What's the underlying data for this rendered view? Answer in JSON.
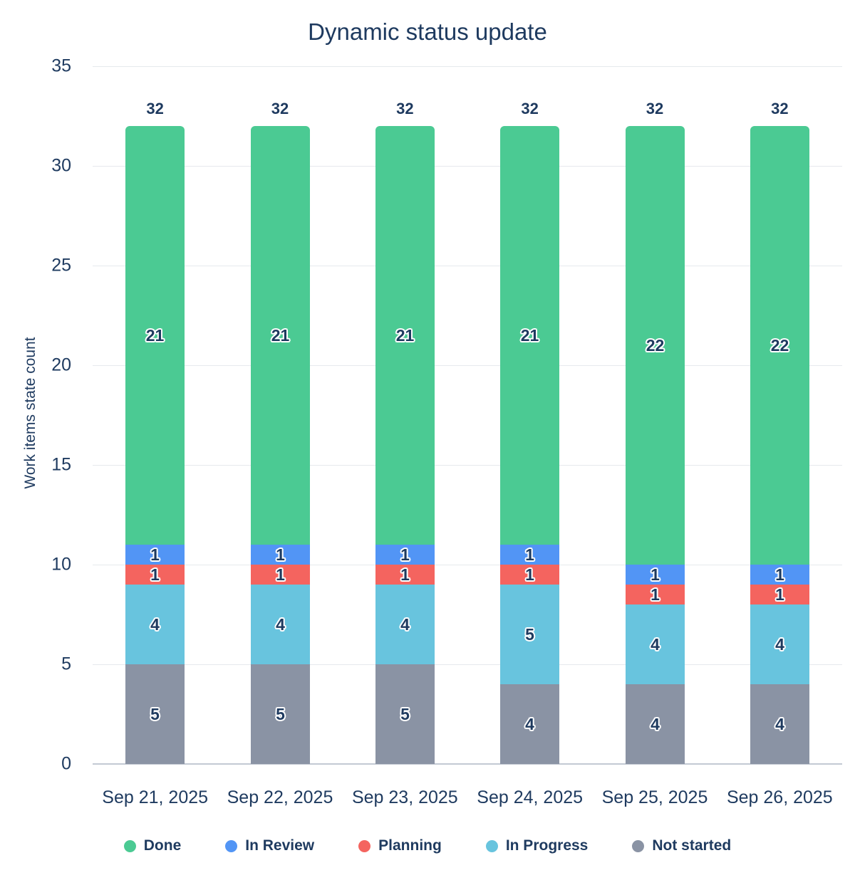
{
  "title": "Dynamic status update",
  "y_axis": {
    "label": "Work items state count",
    "ticks": [
      0,
      5,
      10,
      15,
      20,
      25,
      30,
      35
    ]
  },
  "colors": {
    "text_navy": "#1e3a5f",
    "gridline": "#e6e9ed",
    "zero_line": "#c3c9d3",
    "done": "#4bca93",
    "in_review": "#5295f5",
    "planning": "#f4645f",
    "in_progress": "#68c4de",
    "not_started": "#8a93a4"
  },
  "chart_data": {
    "type": "bar",
    "stacked": true,
    "title": "Dynamic status update",
    "xlabel": "",
    "ylabel": "Work items state count",
    "ylim": [
      0,
      35
    ],
    "grid": true,
    "legend_position": "bottom",
    "categories": [
      "Sep 21, 2025",
      "Sep 22, 2025",
      "Sep 23, 2025",
      "Sep 24, 2025",
      "Sep 25, 2025",
      "Sep 26, 2025"
    ],
    "series": [
      {
        "name": "Not started",
        "color": "#8a93a4",
        "values": [
          5,
          5,
          5,
          4,
          4,
          4
        ]
      },
      {
        "name": "In Progress",
        "color": "#68c4de",
        "values": [
          4,
          4,
          4,
          5,
          4,
          4
        ]
      },
      {
        "name": "Planning",
        "color": "#f4645f",
        "values": [
          1,
          1,
          1,
          1,
          1,
          1
        ]
      },
      {
        "name": "In Review",
        "color": "#5295f5",
        "values": [
          1,
          1,
          1,
          1,
          1,
          1
        ]
      },
      {
        "name": "Done",
        "color": "#4bca93",
        "values": [
          21,
          21,
          21,
          21,
          22,
          22
        ]
      }
    ],
    "totals": [
      32,
      32,
      32,
      32,
      32,
      32
    ],
    "legend_order": [
      "Done",
      "In Review",
      "Planning",
      "In Progress",
      "Not started"
    ]
  }
}
